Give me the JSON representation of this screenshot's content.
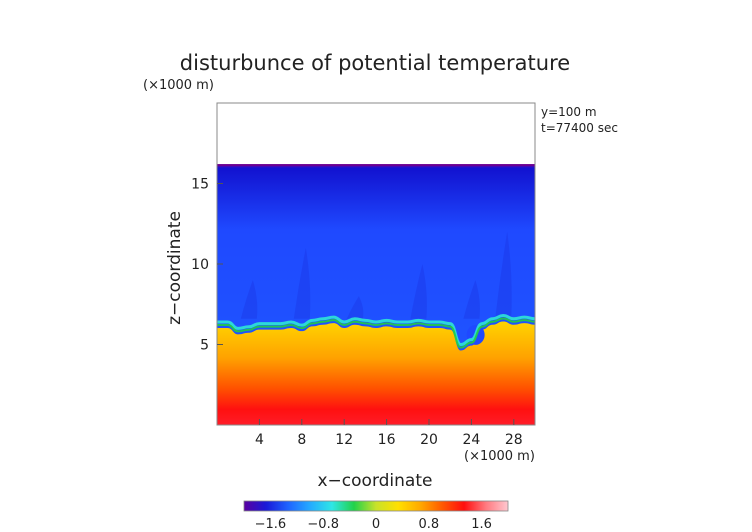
{
  "chart_data": {
    "type": "heatmap",
    "title": "disturbunce of potential temperature",
    "y_unit": "(×1000 m)",
    "x_unit": "(×1000 m)",
    "xlabel": "x−coordinate",
    "ylabel": "z−coordinate",
    "annotations": [
      "y=100  m",
      "t=77400 sec"
    ],
    "x_range": [
      0,
      30
    ],
    "y_range": [
      0,
      20
    ],
    "x_ticks": [
      4,
      8,
      12,
      16,
      20,
      24,
      28
    ],
    "y_ticks": [
      5,
      10,
      15
    ],
    "x_tick_labels": [
      "4",
      "8",
      "12",
      "16",
      "20",
      "24",
      "28"
    ],
    "y_tick_labels": [
      "5",
      "10",
      "15"
    ],
    "domain_top": 16.2,
    "interface_height": [
      6.4,
      6.4,
      6.0,
      6.1,
      6.3,
      6.3,
      6.3,
      6.4,
      6.2,
      6.5,
      6.6,
      6.7,
      6.4,
      6.6,
      6.5,
      6.4,
      6.5,
      6.4,
      6.4,
      6.5,
      6.4,
      6.4,
      6.3,
      5.0,
      5.3,
      6.3,
      6.6,
      6.8,
      6.6,
      6.7,
      6.6
    ],
    "colorbar": {
      "range": [
        -2.0,
        2.0
      ],
      "ticks": [
        -1.6,
        -0.8,
        0,
        0.8,
        1.6
      ],
      "tick_labels": [
        "−1.6",
        "−0.8",
        "0",
        "0.8",
        "1.6"
      ],
      "colors": [
        "#5a00a0",
        "#1a1ad8",
        "#1e63ff",
        "#25aaff",
        "#2ee6e6",
        "#22d24a",
        "#c8e22a",
        "#ffe000",
        "#ffaa00",
        "#ff5a00",
        "#ff0e0e",
        "#ff7a80",
        "#ffc8d0"
      ]
    }
  }
}
